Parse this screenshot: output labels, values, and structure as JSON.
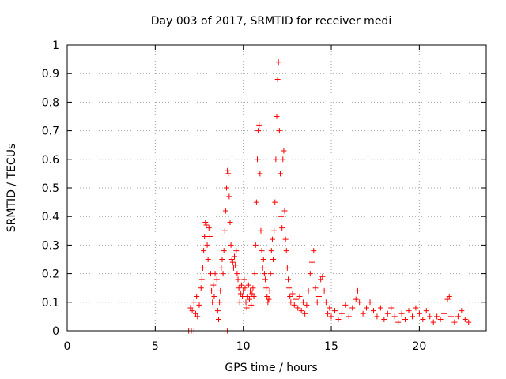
{
  "chart_data": {
    "type": "scatter",
    "title": "Day 003 of 2017, SRMTID for receiver medi",
    "xlabel": "GPS time / hours",
    "ylabel": "SRMTID / TECUs",
    "xlim": [
      0,
      23.8
    ],
    "ylim": [
      0,
      1
    ],
    "x_ticks": [
      0,
      5,
      10,
      15,
      20
    ],
    "y_ticks": [
      0,
      0.1,
      0.2,
      0.3,
      0.4,
      0.5,
      0.6,
      0.7,
      0.8,
      0.9,
      1
    ],
    "x_tick_labels": [
      "0",
      "5",
      "10",
      "15",
      "20"
    ],
    "y_tick_labels": [
      "0",
      "0.1",
      "0.2",
      "0.3",
      "0.4",
      "0.5",
      "0.6",
      "0.7",
      "0.8",
      "0.9",
      "1"
    ],
    "grid": true,
    "series": [
      {
        "name": "SRMTID",
        "color": "#ff0000",
        "marker": "plus",
        "points": [
          [
            6.9,
            0.0
          ],
          [
            7.05,
            0.0
          ],
          [
            7.2,
            0.0
          ],
          [
            9.1,
            0.0
          ],
          [
            7.0,
            0.08
          ],
          [
            7.1,
            0.07
          ],
          [
            7.2,
            0.1
          ],
          [
            7.3,
            0.06
          ],
          [
            7.35,
            0.12
          ],
          [
            7.4,
            0.05
          ],
          [
            7.5,
            0.09
          ],
          [
            7.6,
            0.15
          ],
          [
            7.65,
            0.18
          ],
          [
            7.7,
            0.22
          ],
          [
            7.75,
            0.28
          ],
          [
            7.8,
            0.33
          ],
          [
            7.85,
            0.38
          ],
          [
            7.9,
            0.37
          ],
          [
            7.95,
            0.3
          ],
          [
            8.0,
            0.25
          ],
          [
            8.05,
            0.36
          ],
          [
            8.1,
            0.33
          ],
          [
            8.15,
            0.2
          ],
          [
            8.2,
            0.14
          ],
          [
            8.25,
            0.1
          ],
          [
            8.3,
            0.16
          ],
          [
            8.35,
            0.12
          ],
          [
            8.4,
            0.2
          ],
          [
            8.5,
            0.18
          ],
          [
            8.55,
            0.07
          ],
          [
            8.6,
            0.04
          ],
          [
            8.65,
            0.1
          ],
          [
            8.7,
            0.14
          ],
          [
            8.75,
            0.22
          ],
          [
            8.8,
            0.25
          ],
          [
            8.85,
            0.2
          ],
          [
            8.9,
            0.28
          ],
          [
            8.95,
            0.35
          ],
          [
            9.0,
            0.42
          ],
          [
            9.05,
            0.5
          ],
          [
            9.1,
            0.56
          ],
          [
            9.15,
            0.55
          ],
          [
            9.2,
            0.47
          ],
          [
            9.25,
            0.38
          ],
          [
            9.3,
            0.3
          ],
          [
            9.35,
            0.25
          ],
          [
            9.4,
            0.24
          ],
          [
            9.45,
            0.22
          ],
          [
            9.5,
            0.26
          ],
          [
            9.55,
            0.23
          ],
          [
            9.6,
            0.28
          ],
          [
            9.65,
            0.2
          ],
          [
            9.7,
            0.18
          ],
          [
            9.75,
            0.15
          ],
          [
            9.8,
            0.1
          ],
          [
            9.85,
            0.13
          ],
          [
            9.9,
            0.16
          ],
          [
            9.95,
            0.12
          ],
          [
            10.0,
            0.14
          ],
          [
            10.05,
            0.18
          ],
          [
            10.1,
            0.15
          ],
          [
            10.15,
            0.1
          ],
          [
            10.2,
            0.08
          ],
          [
            10.25,
            0.12
          ],
          [
            10.3,
            0.16
          ],
          [
            10.35,
            0.11
          ],
          [
            10.4,
            0.14
          ],
          [
            10.45,
            0.09
          ],
          [
            10.5,
            0.13
          ],
          [
            10.55,
            0.15
          ],
          [
            10.6,
            0.12
          ],
          [
            10.65,
            0.2
          ],
          [
            10.7,
            0.3
          ],
          [
            10.75,
            0.45
          ],
          [
            10.8,
            0.6
          ],
          [
            10.85,
            0.7
          ],
          [
            10.9,
            0.72
          ],
          [
            10.95,
            0.55
          ],
          [
            11.0,
            0.35
          ],
          [
            11.05,
            0.28
          ],
          [
            11.1,
            0.22
          ],
          [
            11.15,
            0.25
          ],
          [
            11.2,
            0.2
          ],
          [
            11.25,
            0.18
          ],
          [
            11.3,
            0.15
          ],
          [
            11.35,
            0.12
          ],
          [
            11.4,
            0.1
          ],
          [
            11.45,
            0.11
          ],
          [
            11.5,
            0.14
          ],
          [
            11.55,
            0.2
          ],
          [
            11.6,
            0.28
          ],
          [
            11.65,
            0.32
          ],
          [
            11.7,
            0.25
          ],
          [
            11.75,
            0.35
          ],
          [
            11.8,
            0.45
          ],
          [
            11.85,
            0.6
          ],
          [
            11.9,
            0.75
          ],
          [
            11.95,
            0.88
          ],
          [
            12.0,
            0.94
          ],
          [
            12.05,
            0.7
          ],
          [
            12.1,
            0.55
          ],
          [
            12.15,
            0.4
          ],
          [
            12.2,
            0.36
          ],
          [
            12.25,
            0.6
          ],
          [
            12.3,
            0.63
          ],
          [
            12.35,
            0.42
          ],
          [
            12.4,
            0.32
          ],
          [
            12.45,
            0.28
          ],
          [
            12.5,
            0.22
          ],
          [
            12.55,
            0.18
          ],
          [
            12.6,
            0.15
          ],
          [
            12.65,
            0.12
          ],
          [
            12.7,
            0.1
          ],
          [
            12.8,
            0.13
          ],
          [
            12.9,
            0.09
          ],
          [
            13.0,
            0.11
          ],
          [
            13.1,
            0.08
          ],
          [
            13.2,
            0.12
          ],
          [
            13.3,
            0.07
          ],
          [
            13.4,
            0.1
          ],
          [
            13.5,
            0.06
          ],
          [
            13.6,
            0.09
          ],
          [
            13.7,
            0.14
          ],
          [
            13.8,
            0.2
          ],
          [
            13.9,
            0.24
          ],
          [
            14.0,
            0.28
          ],
          [
            14.1,
            0.15
          ],
          [
            14.2,
            0.1
          ],
          [
            14.3,
            0.12
          ],
          [
            14.4,
            0.18
          ],
          [
            14.5,
            0.19
          ],
          [
            14.6,
            0.14
          ],
          [
            14.7,
            0.1
          ],
          [
            14.8,
            0.06
          ],
          [
            14.9,
            0.08
          ],
          [
            15.0,
            0.05
          ],
          [
            15.2,
            0.07
          ],
          [
            15.4,
            0.04
          ],
          [
            15.6,
            0.06
          ],
          [
            15.8,
            0.09
          ],
          [
            16.0,
            0.05
          ],
          [
            16.2,
            0.08
          ],
          [
            16.4,
            0.11
          ],
          [
            16.5,
            0.14
          ],
          [
            16.6,
            0.1
          ],
          [
            16.8,
            0.06
          ],
          [
            17.0,
            0.08
          ],
          [
            17.2,
            0.1
          ],
          [
            17.4,
            0.07
          ],
          [
            17.6,
            0.05
          ],
          [
            17.8,
            0.08
          ],
          [
            18.0,
            0.04
          ],
          [
            18.2,
            0.06
          ],
          [
            18.4,
            0.08
          ],
          [
            18.6,
            0.05
          ],
          [
            18.8,
            0.03
          ],
          [
            19.0,
            0.06
          ],
          [
            19.2,
            0.04
          ],
          [
            19.4,
            0.07
          ],
          [
            19.6,
            0.05
          ],
          [
            19.8,
            0.08
          ],
          [
            20.0,
            0.06
          ],
          [
            20.2,
            0.04
          ],
          [
            20.4,
            0.07
          ],
          [
            20.6,
            0.05
          ],
          [
            20.8,
            0.03
          ],
          [
            21.0,
            0.05
          ],
          [
            21.2,
            0.04
          ],
          [
            21.4,
            0.06
          ],
          [
            21.6,
            0.11
          ],
          [
            21.7,
            0.12
          ],
          [
            21.8,
            0.05
          ],
          [
            22.0,
            0.03
          ],
          [
            22.2,
            0.05
          ],
          [
            22.4,
            0.07
          ],
          [
            22.6,
            0.04
          ],
          [
            22.8,
            0.03
          ]
        ]
      }
    ]
  }
}
